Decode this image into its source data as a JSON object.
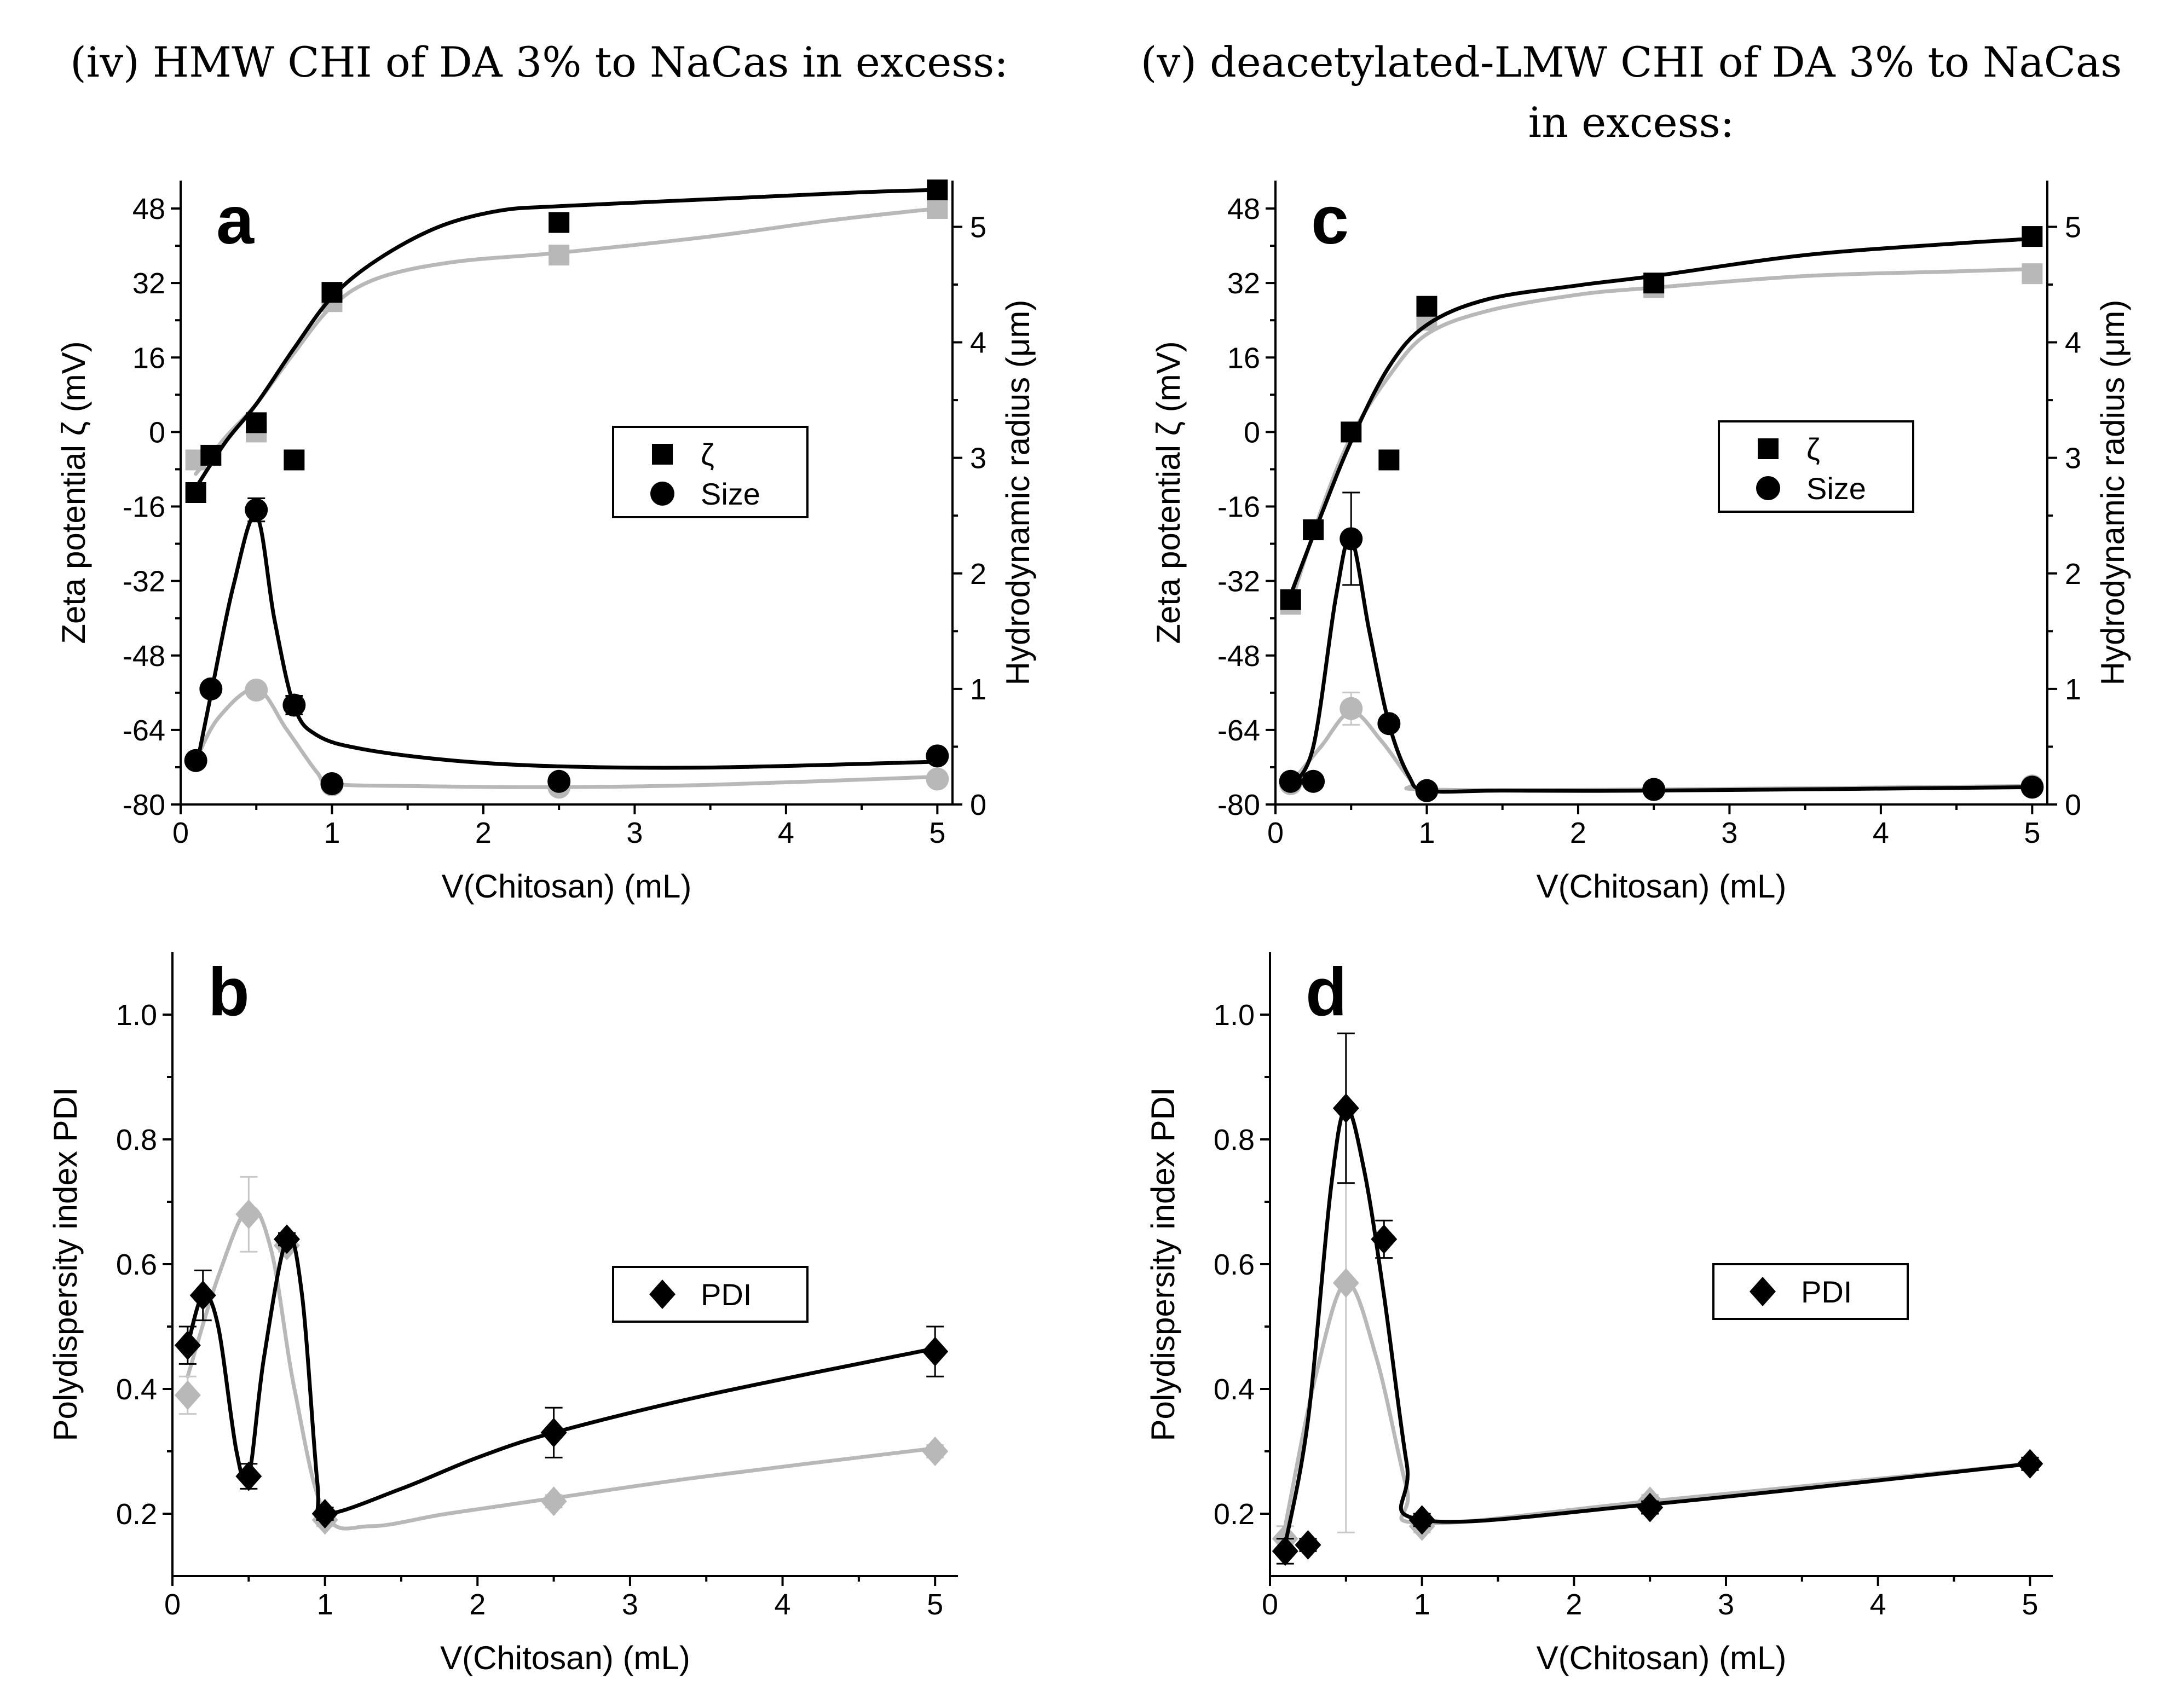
{
  "titles": {
    "left": "(iv) HMW CHI of DA 3% to NaCas in excess:",
    "right_line1": "(v) deacetylated-LMW CHI of DA 3% to NaCas",
    "right_line2": "in excess:"
  },
  "colors": {
    "dark": "#000000",
    "light": "#b8b8b8",
    "light_error": "#c8c8c8"
  },
  "chart_data": [
    {
      "id": "a",
      "type": "scatter",
      "letter": "a",
      "xlabel": "V(Chitosan) (mL)",
      "ylabel": "Zeta potential ζ (mV)",
      "y2label": "Hydrodynamic radius (μm)",
      "xlim": [
        0,
        5.1
      ],
      "ylim": [
        -80,
        54
      ],
      "y2lim": [
        0,
        5.4
      ],
      "xticks": [
        0,
        1,
        2,
        3,
        4,
        5
      ],
      "yticks": [
        48,
        32,
        16,
        0,
        -16,
        -32,
        -48,
        -64,
        -80
      ],
      "y2ticks": [
        0,
        1,
        2,
        3,
        4,
        5
      ],
      "legend": {
        "position": "center-right",
        "entries": [
          {
            "marker": "square",
            "label": "ζ"
          },
          {
            "marker": "circle",
            "label": "Size"
          }
        ]
      },
      "series": [
        {
          "name": "ζ dark",
          "axis": "left",
          "marker": "square",
          "color": "dark",
          "x": [
            0.1,
            0.2,
            0.5,
            0.75,
            1,
            2.5,
            5
          ],
          "y": [
            -13,
            -5,
            2,
            -6,
            30,
            45,
            52
          ],
          "err": [
            1.5,
            1.5,
            1.5,
            1.5,
            1.5,
            2,
            1.5
          ],
          "curve": [
            [
              0.1,
              -12
            ],
            [
              0.3,
              -2
            ],
            [
              0.5,
              6
            ],
            [
              0.75,
              18
            ],
            [
              1,
              29
            ],
            [
              1.3,
              37
            ],
            [
              1.7,
              44
            ],
            [
              2.1,
              47.5
            ],
            [
              2.5,
              48.5
            ],
            [
              3.5,
              50
            ],
            [
              4.5,
              51.5
            ],
            [
              5,
              52
            ]
          ]
        },
        {
          "name": "ζ light",
          "axis": "left",
          "marker": "square",
          "color": "light",
          "x": [
            0.1,
            0.5,
            1,
            2.5,
            5
          ],
          "y": [
            -6,
            0,
            28,
            38,
            48
          ],
          "err": [
            1.5,
            1.5,
            1.5,
            1.5,
            1.5
          ],
          "curve": [
            [
              0.1,
              -9
            ],
            [
              0.3,
              -1
            ],
            [
              0.5,
              6
            ],
            [
              0.75,
              17
            ],
            [
              1,
              27
            ],
            [
              1.3,
              33
            ],
            [
              1.8,
              36.5
            ],
            [
              2.5,
              38.5
            ],
            [
              3.5,
              42
            ],
            [
              4.3,
              45.5
            ],
            [
              5,
              48
            ]
          ]
        },
        {
          "name": "Size dark",
          "axis": "right",
          "marker": "circle",
          "color": "dark",
          "x": [
            0.1,
            0.2,
            0.5,
            0.75,
            1,
            2.5,
            5
          ],
          "y": [
            0.38,
            1.0,
            2.55,
            0.86,
            0.18,
            0.2,
            0.42
          ],
          "err": [
            0.03,
            0.03,
            0.1,
            0.08,
            0.03,
            0.03,
            0.03
          ],
          "curve": [
            [
              0.1,
              0.3
            ],
            [
              0.2,
              0.95
            ],
            [
              0.35,
              1.9
            ],
            [
              0.5,
              2.5
            ],
            [
              0.62,
              1.6
            ],
            [
              0.75,
              0.85
            ],
            [
              0.9,
              0.6
            ],
            [
              1.2,
              0.48
            ],
            [
              1.8,
              0.38
            ],
            [
              2.5,
              0.33
            ],
            [
              3.5,
              0.32
            ],
            [
              5,
              0.37
            ]
          ]
        },
        {
          "name": "Size light",
          "axis": "right",
          "marker": "circle",
          "color": "light",
          "x": [
            0.1,
            0.5,
            1,
            2.5,
            5
          ],
          "y": [
            0.38,
            0.99,
            0.17,
            0.15,
            0.22
          ],
          "err": [
            0.03,
            0.03,
            0.03,
            0.03,
            0.03
          ],
          "curve": [
            [
              0.1,
              0.38
            ],
            [
              0.25,
              0.75
            ],
            [
              0.5,
              1.0
            ],
            [
              0.7,
              0.65
            ],
            [
              0.9,
              0.28
            ],
            [
              1,
              0.18
            ],
            [
              1.5,
              0.16
            ],
            [
              2.5,
              0.15
            ],
            [
              3.5,
              0.17
            ],
            [
              5,
              0.24
            ]
          ]
        }
      ]
    },
    {
      "id": "c",
      "type": "scatter",
      "letter": "c",
      "xlabel": "V(Chitosan) (mL)",
      "ylabel": "Zeta potential ζ (mV)",
      "y2label": "Hydrodynamic radius (μm)",
      "xlim": [
        0,
        5.1
      ],
      "ylim": [
        -80,
        54
      ],
      "y2lim": [
        0,
        5.4
      ],
      "xticks": [
        0,
        1,
        2,
        3,
        4,
        5
      ],
      "yticks": [
        48,
        32,
        16,
        0,
        -16,
        -32,
        -48,
        -64,
        -80
      ],
      "y2ticks": [
        0,
        1,
        2,
        3,
        4,
        5
      ],
      "legend": {
        "position": "center-right",
        "entries": [
          {
            "marker": "square",
            "label": "ζ"
          },
          {
            "marker": "circle",
            "label": "Size"
          }
        ]
      },
      "series": [
        {
          "name": "ζ dark",
          "axis": "left",
          "marker": "square",
          "color": "dark",
          "x": [
            0.1,
            0.25,
            0.5,
            0.75,
            1,
            2.5,
            5
          ],
          "y": [
            -36,
            -21,
            0,
            -6,
            27,
            32,
            42
          ],
          "err": [
            1.5,
            1.5,
            1.5,
            1.5,
            1.5,
            1.5,
            1.5
          ],
          "curve": [
            [
              0.1,
              -35
            ],
            [
              0.3,
              -18
            ],
            [
              0.5,
              -2
            ],
            [
              0.75,
              14
            ],
            [
              1,
              23
            ],
            [
              1.4,
              28.5
            ],
            [
              2,
              31.5
            ],
            [
              2.5,
              33.5
            ],
            [
              3.5,
              38
            ],
            [
              4.5,
              40.5
            ],
            [
              5,
              41.5
            ]
          ]
        },
        {
          "name": "ζ light",
          "axis": "left",
          "marker": "square",
          "color": "light",
          "x": [
            0.1,
            0.5,
            1,
            2.5,
            5
          ],
          "y": [
            -37,
            0,
            24,
            31,
            34
          ],
          "err": [
            1.5,
            1.5,
            1.5,
            1.5,
            1.5
          ],
          "curve": [
            [
              0.1,
              -37
            ],
            [
              0.3,
              -17
            ],
            [
              0.5,
              -1
            ],
            [
              0.75,
              12
            ],
            [
              1,
              21
            ],
            [
              1.4,
              26
            ],
            [
              2,
              29.5
            ],
            [
              2.5,
              31
            ],
            [
              3.5,
              33.5
            ],
            [
              4.5,
              34.5
            ],
            [
              5,
              35
            ]
          ]
        },
        {
          "name": "Size dark",
          "axis": "right",
          "marker": "circle",
          "color": "dark",
          "x": [
            0.1,
            0.25,
            0.5,
            0.75,
            1,
            2.5,
            5
          ],
          "y": [
            0.2,
            0.2,
            2.3,
            0.7,
            0.12,
            0.13,
            0.15
          ],
          "err": [
            0.03,
            0.03,
            0.4,
            0.05,
            0.03,
            0.03,
            0.03
          ],
          "curve": [
            [
              0.1,
              0.15
            ],
            [
              0.25,
              0.5
            ],
            [
              0.4,
              1.8
            ],
            [
              0.5,
              2.3
            ],
            [
              0.62,
              1.5
            ],
            [
              0.75,
              0.7
            ],
            [
              0.88,
              0.25
            ],
            [
              1,
              0.12
            ],
            [
              1.5,
              0.12
            ],
            [
              2.5,
              0.12
            ],
            [
              5,
              0.15
            ]
          ]
        },
        {
          "name": "Size light",
          "axis": "right",
          "marker": "circle",
          "color": "light",
          "x": [
            0.1,
            0.5,
            1,
            2.5,
            5
          ],
          "y": [
            0.18,
            0.83,
            0.12,
            0.13,
            0.16
          ],
          "err": [
            0.03,
            0.14,
            0.03,
            0.03,
            0.03
          ],
          "curve": [
            [
              0.1,
              0.18
            ],
            [
              0.3,
              0.5
            ],
            [
              0.5,
              0.8
            ],
            [
              0.7,
              0.55
            ],
            [
              0.9,
              0.2
            ],
            [
              1,
              0.13
            ],
            [
              2.5,
              0.13
            ],
            [
              5,
              0.16
            ]
          ]
        }
      ]
    },
    {
      "id": "b",
      "type": "scatter",
      "letter": "b",
      "xlabel": "V(Chitosan) (mL)",
      "ylabel": "Polydispersity index PDI",
      "xlim": [
        0,
        5.15
      ],
      "ylim": [
        0.1,
        1.1
      ],
      "xticks": [
        0,
        1,
        2,
        3,
        4,
        5
      ],
      "yticks": [
        1.0,
        0.8,
        0.6,
        0.4,
        0.2
      ],
      "legend": {
        "position": "center-right",
        "entries": [
          {
            "marker": "diamond",
            "label": "PDI"
          }
        ]
      },
      "series": [
        {
          "name": "PDI dark",
          "axis": "left",
          "marker": "diamond",
          "color": "dark",
          "x": [
            0.1,
            0.2,
            0.5,
            0.75,
            1,
            2.5,
            5
          ],
          "y": [
            0.47,
            0.55,
            0.26,
            0.64,
            0.2,
            0.33,
            0.46
          ],
          "err": [
            0.03,
            0.04,
            0.02,
            0.01,
            0.01,
            0.04,
            0.04
          ],
          "curve": [
            [
              0.1,
              0.47
            ],
            [
              0.2,
              0.55
            ],
            [
              0.3,
              0.5
            ],
            [
              0.42,
              0.3
            ],
            [
              0.5,
              0.26
            ],
            [
              0.6,
              0.45
            ],
            [
              0.75,
              0.64
            ],
            [
              0.85,
              0.55
            ],
            [
              0.95,
              0.25
            ],
            [
              1,
              0.2
            ],
            [
              1.5,
              0.24
            ],
            [
              2,
              0.29
            ],
            [
              2.5,
              0.33
            ],
            [
              3.5,
              0.39
            ],
            [
              5,
              0.465
            ]
          ]
        },
        {
          "name": "PDI light",
          "axis": "left",
          "marker": "diamond",
          "color": "light",
          "x": [
            0.1,
            0.5,
            0.75,
            1,
            2.5,
            5
          ],
          "y": [
            0.39,
            0.68,
            0.63,
            0.19,
            0.22,
            0.3
          ],
          "err": [
            0.03,
            0.06,
            0.01,
            0.01,
            0.01,
            0.01
          ],
          "curve": [
            [
              0.1,
              0.42
            ],
            [
              0.3,
              0.58
            ],
            [
              0.5,
              0.69
            ],
            [
              0.65,
              0.62
            ],
            [
              0.8,
              0.4
            ],
            [
              1,
              0.2
            ],
            [
              1.3,
              0.18
            ],
            [
              1.8,
              0.2
            ],
            [
              2.5,
              0.225
            ],
            [
              3.5,
              0.26
            ],
            [
              5,
              0.305
            ]
          ]
        }
      ]
    },
    {
      "id": "d",
      "type": "scatter",
      "letter": "d",
      "xlabel": "V(Chitosan) (mL)",
      "ylabel": "Polydispersity index PDI",
      "xlim": [
        0,
        5.15
      ],
      "ylim": [
        0.1,
        1.1
      ],
      "xticks": [
        0,
        1,
        2,
        3,
        4,
        5
      ],
      "yticks": [
        1.0,
        0.8,
        0.6,
        0.4,
        0.2
      ],
      "legend": {
        "position": "center-right",
        "entries": [
          {
            "marker": "diamond",
            "label": "PDI"
          }
        ]
      },
      "series": [
        {
          "name": "PDI dark",
          "axis": "left",
          "marker": "diamond",
          "color": "dark",
          "x": [
            0.1,
            0.25,
            0.5,
            0.75,
            1,
            2.5,
            5
          ],
          "y": [
            0.14,
            0.15,
            0.85,
            0.64,
            0.19,
            0.21,
            0.28
          ],
          "err": [
            0.02,
            0.01,
            0.12,
            0.03,
            0.01,
            0.01,
            0.01
          ],
          "curve": [
            [
              0.1,
              0.15
            ],
            [
              0.25,
              0.35
            ],
            [
              0.4,
              0.72
            ],
            [
              0.5,
              0.85
            ],
            [
              0.62,
              0.75
            ],
            [
              0.75,
              0.55
            ],
            [
              0.9,
              0.28
            ],
            [
              1,
              0.19
            ],
            [
              2.5,
              0.215
            ],
            [
              5,
              0.28
            ]
          ]
        },
        {
          "name": "PDI light",
          "axis": "left",
          "marker": "diamond",
          "color": "light",
          "x": [
            0.1,
            0.5,
            1,
            2.5,
            5
          ],
          "y": [
            0.16,
            0.57,
            0.18,
            0.22,
            0.28
          ],
          "err": [
            0.02,
            0.4,
            0.01,
            0.01,
            0.01
          ],
          "curve": [
            [
              0.1,
              0.18
            ],
            [
              0.3,
              0.42
            ],
            [
              0.5,
              0.57
            ],
            [
              0.7,
              0.45
            ],
            [
              0.9,
              0.24
            ],
            [
              1,
              0.185
            ],
            [
              2.5,
              0.22
            ],
            [
              5,
              0.28
            ]
          ]
        }
      ]
    }
  ]
}
